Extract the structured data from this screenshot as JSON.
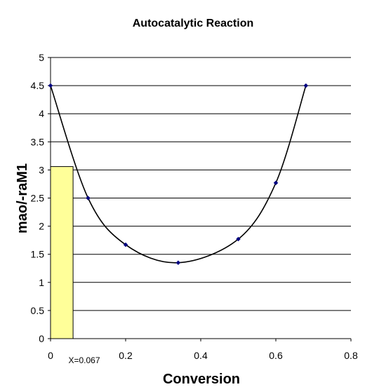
{
  "chart_data": {
    "type": "scatter",
    "title": "Autocatalytic Reaction",
    "xlabel": "Conversion",
    "ylabel": "mao/-raM1",
    "xlim": [
      0,
      0.8
    ],
    "ylim": [
      0,
      5
    ],
    "x_ticks": [
      "0",
      "0.2",
      "0.4",
      "0.6",
      "0.8"
    ],
    "y_ticks": [
      "0",
      "0.5",
      "1",
      "1.5",
      "2",
      "2.5",
      "3",
      "3.5",
      "4",
      "4.5",
      "5"
    ],
    "x_tick_values": [
      0,
      0.2,
      0.4,
      0.6,
      0.8
    ],
    "y_tick_values": [
      0,
      0.5,
      1,
      1.5,
      2,
      2.5,
      3,
      3.5,
      4,
      4.5,
      5
    ],
    "grid": "horizontal",
    "legend": "none",
    "series": [
      {
        "x": [
          0,
          0.1,
          0.2,
          0.34,
          0.5,
          0.6,
          0.68
        ],
        "y": [
          4.5,
          2.5,
          1.67,
          1.35,
          1.77,
          2.77,
          4.5
        ],
        "marker": "diamond",
        "line": "smooth",
        "color": "#000080"
      }
    ],
    "annotation": {
      "label": "X=0.067",
      "shaded_region": {
        "x": [
          0,
          0.06
        ],
        "y": [
          0,
          3.06
        ]
      },
      "fill_color": "#ffff99"
    },
    "colors": {
      "curve": "#000000",
      "grid": "#000000",
      "marker": "#000080",
      "shade": "#ffff99"
    }
  }
}
